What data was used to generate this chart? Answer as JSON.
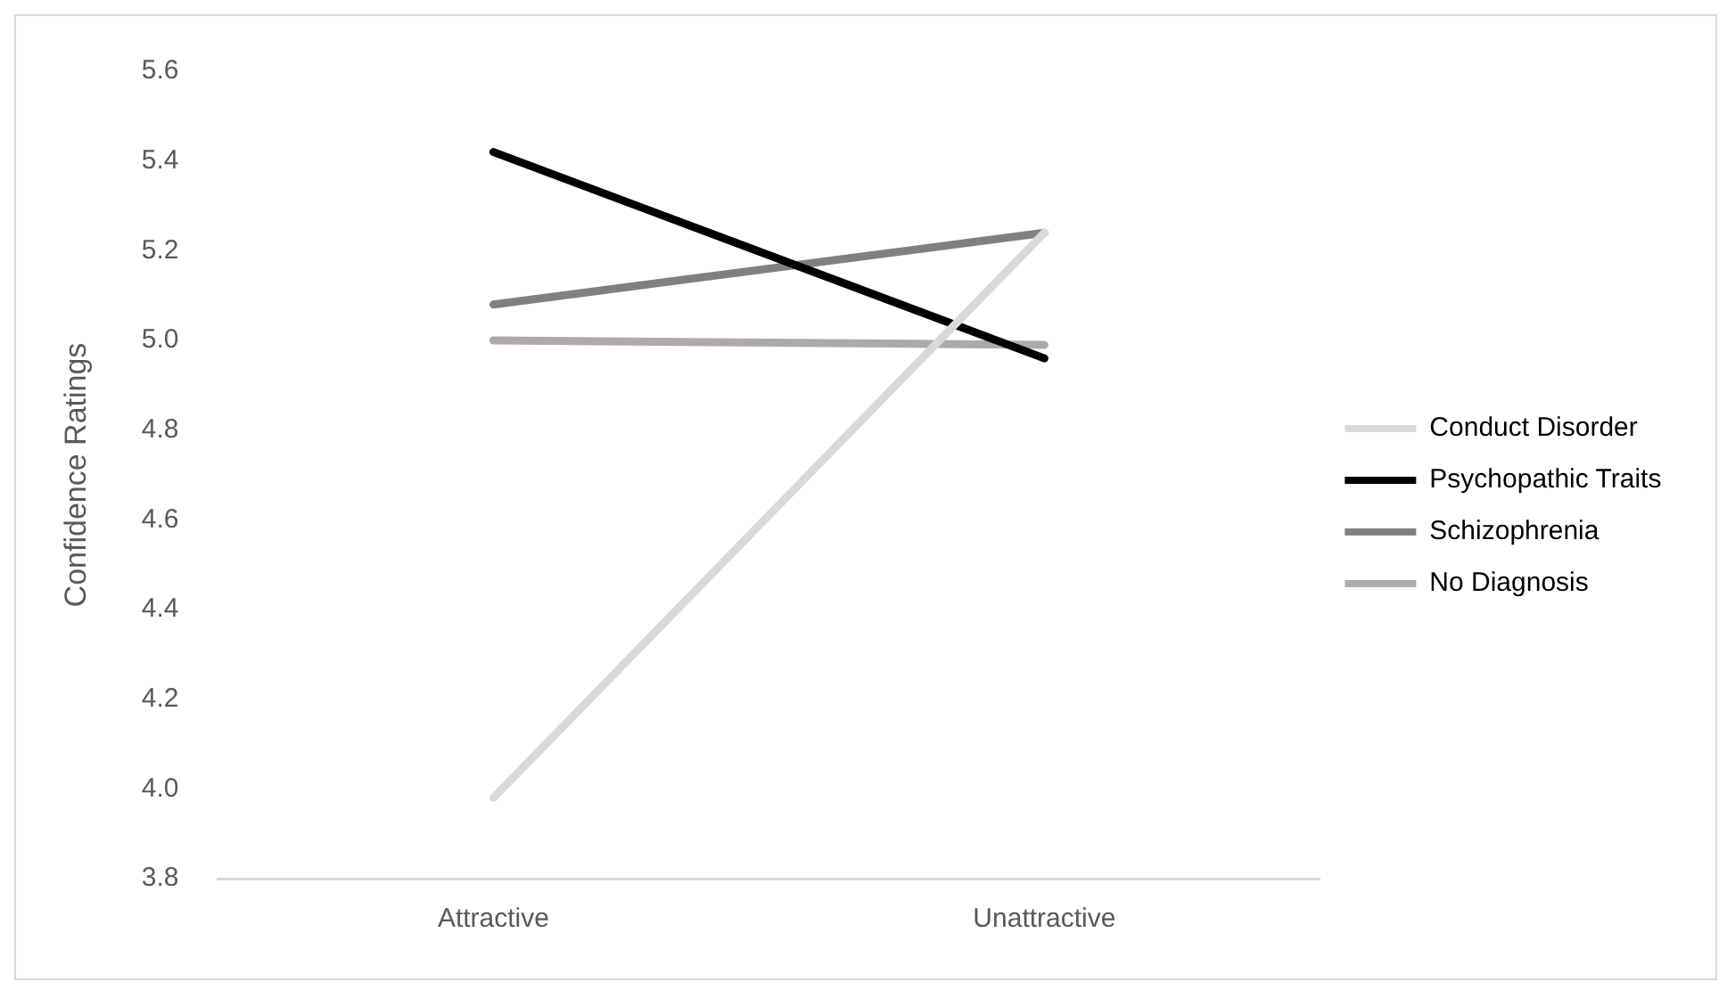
{
  "chart_data": {
    "type": "line",
    "ylabel": "Confidence Ratings",
    "categories": [
      "Attractive",
      "Unattractive"
    ],
    "series": [
      {
        "name": "Conduct Disorder",
        "color": "#d9d9d9",
        "values": [
          3.98,
          5.24
        ]
      },
      {
        "name": "Psychopathic Traits",
        "color": "#000000",
        "values": [
          5.42,
          4.96
        ]
      },
      {
        "name": "Schizophrenia",
        "color": "#808080",
        "values": [
          5.08,
          5.24
        ]
      },
      {
        "name": "No Diagnosis",
        "color": "#aeaaaa",
        "values": [
          5.0,
          4.99
        ]
      }
    ],
    "ylim": [
      3.8,
      5.6
    ],
    "yticks": [
      3.8,
      {
        "value": 4,
        "label": "4.0"
      },
      4.2,
      4.4,
      4.6,
      4.8,
      {
        "value": 5,
        "label": "5.0"
      },
      5.2,
      5.4,
      5.6
    ],
    "grid": false,
    "legend": "right",
    "marker": "none"
  }
}
